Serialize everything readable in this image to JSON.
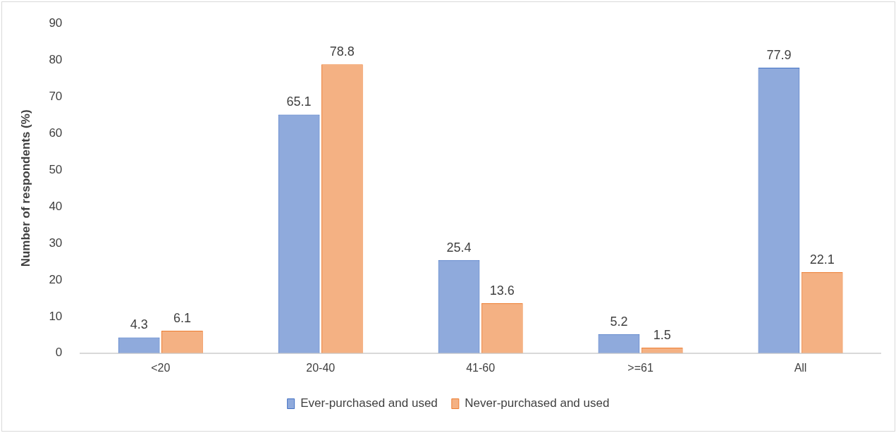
{
  "chart_data": {
    "type": "bar",
    "ylabel": "Number of respondents (%)",
    "categories": [
      "<20",
      "20-40",
      "41-60",
      ">=61",
      "All"
    ],
    "series": [
      {
        "name": "Ever-purchased and used",
        "color": "#4472c4",
        "values": [
          4.3,
          65.1,
          25.4,
          5.2,
          77.9
        ]
      },
      {
        "name": "Never-purchased and used",
        "color": "#ed7d31",
        "values": [
          6.1,
          78.8,
          13.6,
          1.5,
          22.1
        ]
      }
    ],
    "ylim": [
      0,
      90
    ],
    "yticks": [
      0,
      10,
      20,
      30,
      40,
      50,
      60,
      70,
      80,
      90
    ],
    "grid": false,
    "legend": "bottom",
    "data_labels": true
  }
}
